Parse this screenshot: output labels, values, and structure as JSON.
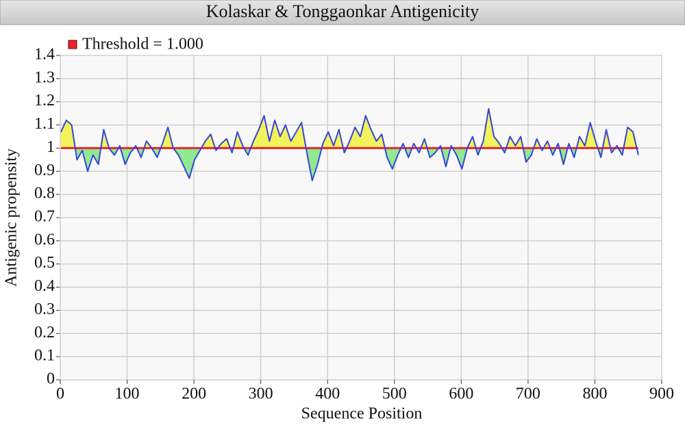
{
  "chart_data": {
    "type": "line",
    "title": "Kolaskar & Tonggaonkar Antigenicity",
    "xlabel": "Sequence Position",
    "ylabel": "Antigenic propensity",
    "threshold": {
      "label": "Threshold = 1.000",
      "value": 1,
      "color": "#e8262a"
    },
    "fill_above_color": "#f2f25c",
    "fill_below_color": "#90e890",
    "grid": true,
    "xlim": [
      0,
      900
    ],
    "ylim": [
      0,
      1.4
    ],
    "xticks": [
      0,
      100,
      200,
      300,
      400,
      500,
      600,
      700,
      800,
      900
    ],
    "yticks": [
      0,
      0.1,
      0.2,
      0.3,
      0.4,
      0.5,
      0.6,
      0.7,
      0.8,
      0.9,
      1,
      1.1,
      1.2,
      1.3,
      1.4
    ],
    "x": [
      1,
      9,
      17,
      25,
      33,
      41,
      49,
      57,
      65,
      73,
      81,
      89,
      97,
      105,
      113,
      121,
      129,
      137,
      145,
      153,
      161,
      169,
      177,
      185,
      193,
      201,
      209,
      217,
      225,
      233,
      241,
      249,
      257,
      265,
      273,
      281,
      289,
      297,
      305,
      313,
      321,
      329,
      337,
      345,
      353,
      361,
      369,
      377,
      385,
      393,
      401,
      409,
      417,
      425,
      433,
      441,
      449,
      457,
      465,
      473,
      481,
      489,
      497,
      505,
      513,
      521,
      529,
      537,
      545,
      553,
      561,
      569,
      577,
      585,
      593,
      601,
      609,
      617,
      625,
      633,
      641,
      649,
      657,
      665,
      673,
      681,
      689,
      697,
      705,
      713,
      721,
      729,
      737,
      745,
      753,
      761,
      769,
      777,
      785,
      793,
      801,
      809,
      817,
      825,
      833,
      841,
      849,
      857,
      865
    ],
    "series": [
      {
        "name": "Antigenic propensity",
        "color": "#3344dd",
        "values": [
          1.07,
          1.12,
          1.1,
          0.95,
          0.99,
          0.9,
          0.97,
          0.93,
          1.08,
          1.0,
          0.97,
          1.01,
          0.93,
          0.98,
          1.01,
          0.96,
          1.03,
          1.0,
          0.96,
          1.02,
          1.09,
          1.0,
          0.97,
          0.92,
          0.87,
          0.95,
          0.99,
          1.03,
          1.06,
          0.99,
          1.02,
          1.04,
          0.98,
          1.07,
          1.01,
          0.97,
          1.03,
          1.08,
          1.14,
          1.03,
          1.12,
          1.05,
          1.1,
          1.03,
          1.07,
          1.11,
          0.98,
          0.86,
          0.93,
          1.02,
          1.07,
          1.01,
          1.08,
          0.98,
          1.03,
          1.09,
          1.05,
          1.14,
          1.08,
          1.03,
          1.06,
          0.96,
          0.91,
          0.97,
          1.02,
          0.96,
          1.02,
          0.98,
          1.04,
          0.96,
          0.98,
          1.01,
          0.92,
          1.01,
          0.97,
          0.91,
          1.0,
          1.05,
          0.97,
          1.03,
          1.17,
          1.05,
          1.02,
          0.98,
          1.05,
          1.01,
          1.05,
          0.94,
          0.97,
          1.04,
          0.99,
          1.03,
          0.97,
          1.02,
          0.93,
          1.02,
          0.96,
          1.05,
          1.01,
          1.11,
          1.03,
          0.96,
          1.08,
          0.98,
          1.01,
          0.97,
          1.09,
          1.07,
          0.97
        ]
      }
    ]
  }
}
